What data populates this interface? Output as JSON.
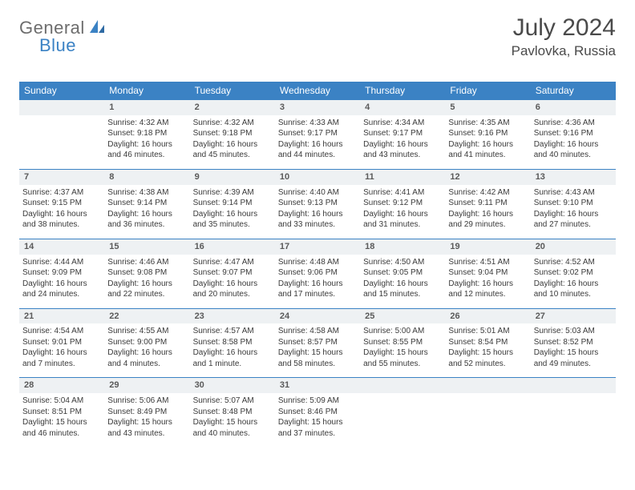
{
  "logo": {
    "part1": "General",
    "part2": "Blue"
  },
  "title": "July 2024",
  "location": "Pavlovka, Russia",
  "colors": {
    "header_bg": "#3b82c4",
    "header_fg": "#ffffff",
    "daynum_bg": "#eef1f3",
    "rule": "#3b82c4",
    "logo_gray": "#6d6d6d",
    "logo_blue": "#3b82c4",
    "text": "#3a3a3a"
  },
  "weekdays": [
    "Sunday",
    "Monday",
    "Tuesday",
    "Wednesday",
    "Thursday",
    "Friday",
    "Saturday"
  ],
  "weeks": [
    [
      null,
      {
        "n": "1",
        "sr": "4:32 AM",
        "ss": "9:18 PM",
        "dl": "16 hours and 46 minutes."
      },
      {
        "n": "2",
        "sr": "4:32 AM",
        "ss": "9:18 PM",
        "dl": "16 hours and 45 minutes."
      },
      {
        "n": "3",
        "sr": "4:33 AM",
        "ss": "9:17 PM",
        "dl": "16 hours and 44 minutes."
      },
      {
        "n": "4",
        "sr": "4:34 AM",
        "ss": "9:17 PM",
        "dl": "16 hours and 43 minutes."
      },
      {
        "n": "5",
        "sr": "4:35 AM",
        "ss": "9:16 PM",
        "dl": "16 hours and 41 minutes."
      },
      {
        "n": "6",
        "sr": "4:36 AM",
        "ss": "9:16 PM",
        "dl": "16 hours and 40 minutes."
      }
    ],
    [
      {
        "n": "7",
        "sr": "4:37 AM",
        "ss": "9:15 PM",
        "dl": "16 hours and 38 minutes."
      },
      {
        "n": "8",
        "sr": "4:38 AM",
        "ss": "9:14 PM",
        "dl": "16 hours and 36 minutes."
      },
      {
        "n": "9",
        "sr": "4:39 AM",
        "ss": "9:14 PM",
        "dl": "16 hours and 35 minutes."
      },
      {
        "n": "10",
        "sr": "4:40 AM",
        "ss": "9:13 PM",
        "dl": "16 hours and 33 minutes."
      },
      {
        "n": "11",
        "sr": "4:41 AM",
        "ss": "9:12 PM",
        "dl": "16 hours and 31 minutes."
      },
      {
        "n": "12",
        "sr": "4:42 AM",
        "ss": "9:11 PM",
        "dl": "16 hours and 29 minutes."
      },
      {
        "n": "13",
        "sr": "4:43 AM",
        "ss": "9:10 PM",
        "dl": "16 hours and 27 minutes."
      }
    ],
    [
      {
        "n": "14",
        "sr": "4:44 AM",
        "ss": "9:09 PM",
        "dl": "16 hours and 24 minutes."
      },
      {
        "n": "15",
        "sr": "4:46 AM",
        "ss": "9:08 PM",
        "dl": "16 hours and 22 minutes."
      },
      {
        "n": "16",
        "sr": "4:47 AM",
        "ss": "9:07 PM",
        "dl": "16 hours and 20 minutes."
      },
      {
        "n": "17",
        "sr": "4:48 AM",
        "ss": "9:06 PM",
        "dl": "16 hours and 17 minutes."
      },
      {
        "n": "18",
        "sr": "4:50 AM",
        "ss": "9:05 PM",
        "dl": "16 hours and 15 minutes."
      },
      {
        "n": "19",
        "sr": "4:51 AM",
        "ss": "9:04 PM",
        "dl": "16 hours and 12 minutes."
      },
      {
        "n": "20",
        "sr": "4:52 AM",
        "ss": "9:02 PM",
        "dl": "16 hours and 10 minutes."
      }
    ],
    [
      {
        "n": "21",
        "sr": "4:54 AM",
        "ss": "9:01 PM",
        "dl": "16 hours and 7 minutes."
      },
      {
        "n": "22",
        "sr": "4:55 AM",
        "ss": "9:00 PM",
        "dl": "16 hours and 4 minutes."
      },
      {
        "n": "23",
        "sr": "4:57 AM",
        "ss": "8:58 PM",
        "dl": "16 hours and 1 minute."
      },
      {
        "n": "24",
        "sr": "4:58 AM",
        "ss": "8:57 PM",
        "dl": "15 hours and 58 minutes."
      },
      {
        "n": "25",
        "sr": "5:00 AM",
        "ss": "8:55 PM",
        "dl": "15 hours and 55 minutes."
      },
      {
        "n": "26",
        "sr": "5:01 AM",
        "ss": "8:54 PM",
        "dl": "15 hours and 52 minutes."
      },
      {
        "n": "27",
        "sr": "5:03 AM",
        "ss": "8:52 PM",
        "dl": "15 hours and 49 minutes."
      }
    ],
    [
      {
        "n": "28",
        "sr": "5:04 AM",
        "ss": "8:51 PM",
        "dl": "15 hours and 46 minutes."
      },
      {
        "n": "29",
        "sr": "5:06 AM",
        "ss": "8:49 PM",
        "dl": "15 hours and 43 minutes."
      },
      {
        "n": "30",
        "sr": "5:07 AM",
        "ss": "8:48 PM",
        "dl": "15 hours and 40 minutes."
      },
      {
        "n": "31",
        "sr": "5:09 AM",
        "ss": "8:46 PM",
        "dl": "15 hours and 37 minutes."
      },
      null,
      null,
      null
    ]
  ],
  "labels": {
    "sunrise": "Sunrise:",
    "sunset": "Sunset:",
    "daylight": "Daylight:"
  }
}
